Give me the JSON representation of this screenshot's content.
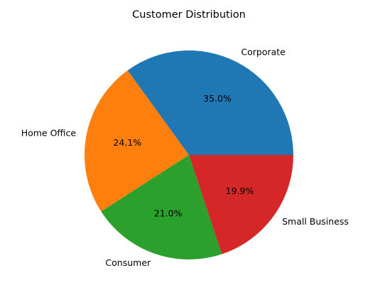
{
  "chart_data": {
    "type": "pie",
    "title": "Customer Distribution",
    "slices": [
      {
        "label": "Corporate",
        "percent": 35.0,
        "percent_label": "35.0%",
        "color": "#1f77b4"
      },
      {
        "label": "Home Office",
        "percent": 24.1,
        "percent_label": "24.1%",
        "color": "#ff7f0e"
      },
      {
        "label": "Consumer",
        "percent": 21.0,
        "percent_label": "21.0%",
        "color": "#2ca02c"
      },
      {
        "label": "Small Business",
        "percent": 19.9,
        "percent_label": "19.9%",
        "color": "#d62728"
      }
    ],
    "start_angle_deg": 0,
    "direction": "counterclockwise",
    "legend": "none"
  }
}
